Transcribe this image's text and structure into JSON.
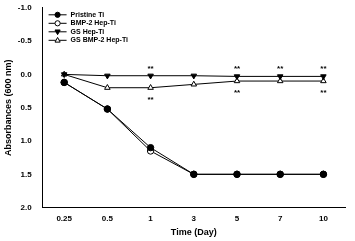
{
  "chart_data": {
    "type": "line",
    "x_label": "Time (Day)",
    "y_label": "Absorbances (600 nm)",
    "categories": [
      "0.25",
      "0.5",
      "1",
      "3",
      "5",
      "7",
      "10"
    ],
    "series": [
      {
        "name": "Pristine Ti",
        "color": "#000000",
        "marker": "circle",
        "values": [
          0.12,
          0.52,
          1.1,
          1.5,
          1.5,
          1.5,
          1.5
        ]
      },
      {
        "name": "BMP-2 Hep-Ti",
        "color": "#000000",
        "marker": "circle-open",
        "values": [
          0.12,
          0.52,
          1.15,
          1.5,
          1.5,
          1.5,
          1.5
        ]
      },
      {
        "name": "GS Hep-Ti",
        "color": "#000000",
        "marker": "triangle-down",
        "values": [
          0.0,
          0.02,
          0.02,
          0.02,
          0.03,
          0.03,
          0.03
        ]
      },
      {
        "name": "GS BMP-2 Hep-Ti",
        "color": "#000000",
        "marker": "triangle-open",
        "values": [
          0.0,
          0.2,
          0.2,
          0.15,
          0.1,
          0.1,
          0.1
        ]
      }
    ],
    "annotations": [
      {
        "text": "**",
        "x": "1",
        "y": -0.08
      },
      {
        "text": "**",
        "x": "1",
        "y": 0.38
      },
      {
        "text": "**",
        "x": "5",
        "y": -0.08
      },
      {
        "text": "**",
        "x": "5",
        "y": 0.28
      },
      {
        "text": "**",
        "x": "7",
        "y": -0.08
      },
      {
        "text": "**",
        "x": "10",
        "y": -0.08
      },
      {
        "text": "**",
        "x": "10",
        "y": 0.28
      }
    ],
    "ylim": [
      2.0,
      -1.0
    ],
    "yticks": [
      {
        "value": -1.0,
        "label": "-1.0"
      },
      {
        "value": -0.5,
        "label": "-0.5"
      },
      {
        "value": 0,
        "label": "0.0"
      },
      {
        "value": 0.5,
        "label": "0.5"
      },
      {
        "value": 1.0,
        "label": "1.0"
      },
      {
        "value": 1.5,
        "label": "1.5"
      },
      {
        "value": 2.0,
        "label": "2.0"
      }
    ],
    "grid": false,
    "legend": "top-left"
  }
}
